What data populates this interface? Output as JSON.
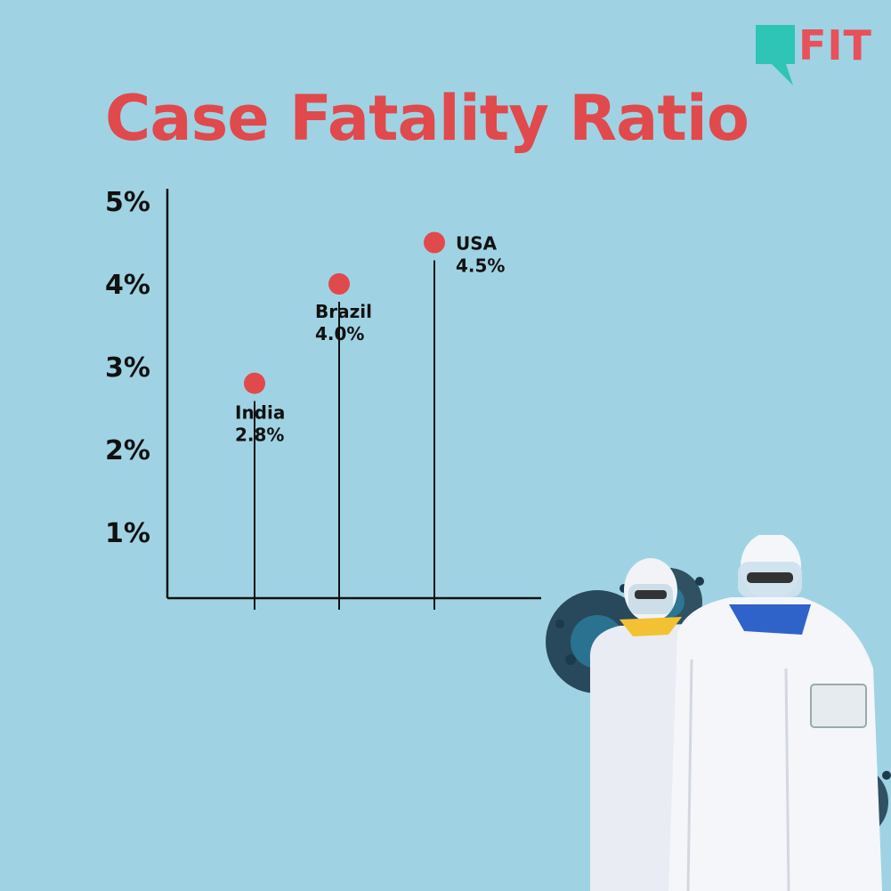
{
  "brand": {
    "name": "FIT",
    "accent": "#e8505b",
    "bubble_color": "#2ec4b6"
  },
  "chart_data": {
    "type": "scatter",
    "title": "Case Fatality Ratio",
    "xlabel": "",
    "ylabel": "",
    "ylim": [
      0,
      5
    ],
    "yticks": [
      1,
      2,
      3,
      4,
      5
    ],
    "ytick_labels": [
      "1%",
      "2%",
      "3%",
      "4%",
      "5%"
    ],
    "points": [
      {
        "label": "India",
        "value_label": "2.8%",
        "y": 2.8
      },
      {
        "label": "Brazil",
        "value_label": "4.0%",
        "y": 4.0
      },
      {
        "label": "USA",
        "value_label": "4.5%",
        "y": 4.5
      }
    ],
    "grid": false,
    "marker_color": "#e04a4c",
    "background": "#9fd3e3"
  },
  "illustration": {
    "subject": "two-health-workers-in-ppe-suits",
    "virus_color": "#1b3a4b"
  }
}
